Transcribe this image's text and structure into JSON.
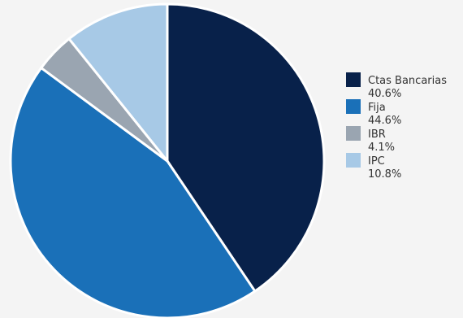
{
  "chart_data": {
    "type": "pie",
    "series": [
      {
        "name": "Ctas Bancarias",
        "value": 40.6,
        "label": "40.6%",
        "color": "#08214a"
      },
      {
        "name": "Fija",
        "value": 44.6,
        "label": "44.6%",
        "color": "#1a70b8"
      },
      {
        "name": "IBR",
        "value": 4.1,
        "label": "4.1%",
        "color": "#9aa5b1"
      },
      {
        "name": "IPC",
        "value": 10.8,
        "label": "10.8%",
        "color": "#a7c9e6"
      }
    ],
    "start_angle": "top",
    "direction": "clockwise",
    "legend_position": "right"
  }
}
